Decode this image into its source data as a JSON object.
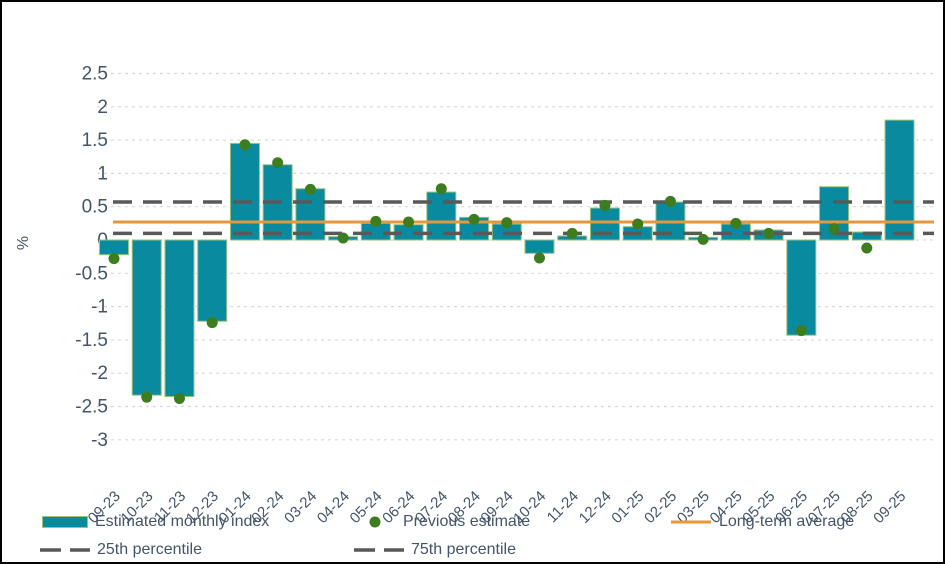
{
  "chart_data": {
    "type": "bar",
    "title": "",
    "xlabel": "",
    "ylabel": "%",
    "grid": "horizontal-dotted",
    "legend_position": "bottom",
    "categories": [
      "09-23",
      "10-23",
      "11-23",
      "12-23",
      "01-24",
      "02-24",
      "03-24",
      "04-24",
      "05-24",
      "06-24",
      "07-24",
      "08-24",
      "09-24",
      "10-24",
      "11-24",
      "12-24",
      "01-25",
      "02-25",
      "03-25",
      "04-25",
      "05-25",
      "06-25",
      "07-25",
      "08-25",
      "09-25"
    ],
    "y_ticks": [
      2.5,
      2,
      1.5,
      1,
      0.5,
      0,
      -0.5,
      -1,
      -1.5,
      -2,
      -2.5,
      -3
    ],
    "ylim": [
      -3.3,
      2.75
    ],
    "series": [
      {
        "name": "Estimated monthly index",
        "type": "bar",
        "color": "#0a8a9e",
        "edge_color": "#9cc27c",
        "values": [
          -0.22,
          -2.33,
          -2.35,
          -1.22,
          1.45,
          1.13,
          0.77,
          0.05,
          0.25,
          0.23,
          0.72,
          0.34,
          0.24,
          -0.2,
          0.06,
          0.48,
          0.2,
          0.57,
          0.04,
          0.24,
          0.15,
          -1.43,
          0.8,
          0.12,
          1.8
        ]
      },
      {
        "name": "Previous estimate",
        "type": "scatter",
        "color": "#3e7d1f",
        "values": [
          -0.28,
          -2.36,
          -2.38,
          -1.24,
          1.43,
          1.16,
          0.76,
          0.03,
          0.28,
          0.27,
          0.77,
          0.31,
          0.26,
          -0.27,
          0.1,
          0.52,
          0.24,
          0.58,
          0.01,
          0.25,
          0.1,
          -1.36,
          0.17,
          -0.12,
          null
        ]
      },
      {
        "name": "Long-term average",
        "type": "line",
        "color": "#e8973a",
        "value": 0.27
      },
      {
        "name": "25th percentile",
        "type": "dashed-line",
        "color": "#595959",
        "value": 0.1
      },
      {
        "name": "75th percentile",
        "type": "dashed-line",
        "color": "#595959",
        "value": 0.57
      }
    ],
    "tick_color": "#44546A",
    "grid_color": "#d9d9d9"
  }
}
